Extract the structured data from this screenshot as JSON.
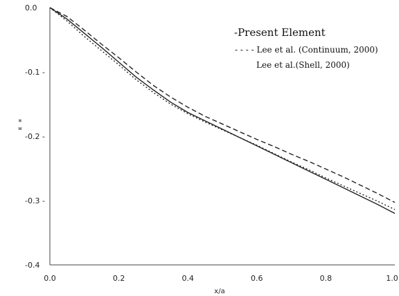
{
  "chart_data": {
    "type": "line",
    "title": "",
    "xlabel": "x/a",
    "ylabel": "w",
    "ylabel_superscript": "*",
    "xlim": [
      0.0,
      1.0
    ],
    "ylim": [
      -0.4,
      0.0
    ],
    "x_ticks": [
      {
        "value": 0.0,
        "label": "0.0"
      },
      {
        "value": 0.2,
        "label": "0.2"
      },
      {
        "value": 0.4,
        "label": "0.4"
      },
      {
        "value": 0.6,
        "label": "0.6"
      },
      {
        "value": 0.8,
        "label": "0.8"
      },
      {
        "value": 1.0,
        "label": "1.0"
      }
    ],
    "y_ticks": [
      {
        "value": 0.0,
        "label": "0.0"
      },
      {
        "value": -0.1,
        "label": "-0.1 -"
      },
      {
        "value": -0.2,
        "label": "-0.2 -"
      },
      {
        "value": -0.3,
        "label": "-0.3 -"
      },
      {
        "value": -0.4,
        "label": "-0.4"
      }
    ],
    "grid": false,
    "legend_position": "top-right",
    "series": [
      {
        "name": "-Present Element",
        "style": "solid",
        "x": [
          0.0,
          0.05,
          0.1,
          0.15,
          0.2,
          0.25,
          0.3,
          0.35,
          0.4,
          0.45,
          0.5,
          0.55,
          0.6,
          0.65,
          0.7,
          0.75,
          0.8,
          0.85,
          0.9,
          0.95,
          1.0
        ],
        "y": [
          0.0,
          -0.018,
          -0.04,
          -0.062,
          -0.085,
          -0.108,
          -0.128,
          -0.147,
          -0.163,
          -0.176,
          -0.189,
          -0.202,
          -0.215,
          -0.228,
          -0.241,
          -0.254,
          -0.267,
          -0.28,
          -0.293,
          -0.306,
          -0.32
        ]
      },
      {
        "name": "- - - - Lee et al. (Continuum, 2000)",
        "style": "dashed",
        "x": [
          0.0,
          0.05,
          0.1,
          0.15,
          0.2,
          0.25,
          0.3,
          0.35,
          0.4,
          0.45,
          0.5,
          0.55,
          0.6,
          0.65,
          0.7,
          0.75,
          0.8,
          0.85,
          0.9,
          0.95,
          1.0
        ],
        "y": [
          0.0,
          -0.014,
          -0.035,
          -0.057,
          -0.078,
          -0.1,
          -0.121,
          -0.139,
          -0.155,
          -0.169,
          -0.181,
          -0.193,
          -0.205,
          -0.216,
          -0.228,
          -0.239,
          -0.251,
          -0.263,
          -0.276,
          -0.289,
          -0.303
        ]
      },
      {
        "name": "Lee et al.(Shell, 2000)",
        "style": "dotted",
        "x": [
          0.0,
          0.05,
          0.1,
          0.15,
          0.2,
          0.25,
          0.3,
          0.35,
          0.4,
          0.45,
          0.5,
          0.55,
          0.6,
          0.65,
          0.7,
          0.75,
          0.8,
          0.85,
          0.9,
          0.95,
          1.0
        ],
        "y": [
          0.0,
          -0.021,
          -0.045,
          -0.067,
          -0.089,
          -0.112,
          -0.132,
          -0.15,
          -0.165,
          -0.178,
          -0.19,
          -0.202,
          -0.214,
          -0.227,
          -0.24,
          -0.252,
          -0.265,
          -0.277,
          -0.289,
          -0.301,
          -0.314
        ]
      }
    ]
  }
}
